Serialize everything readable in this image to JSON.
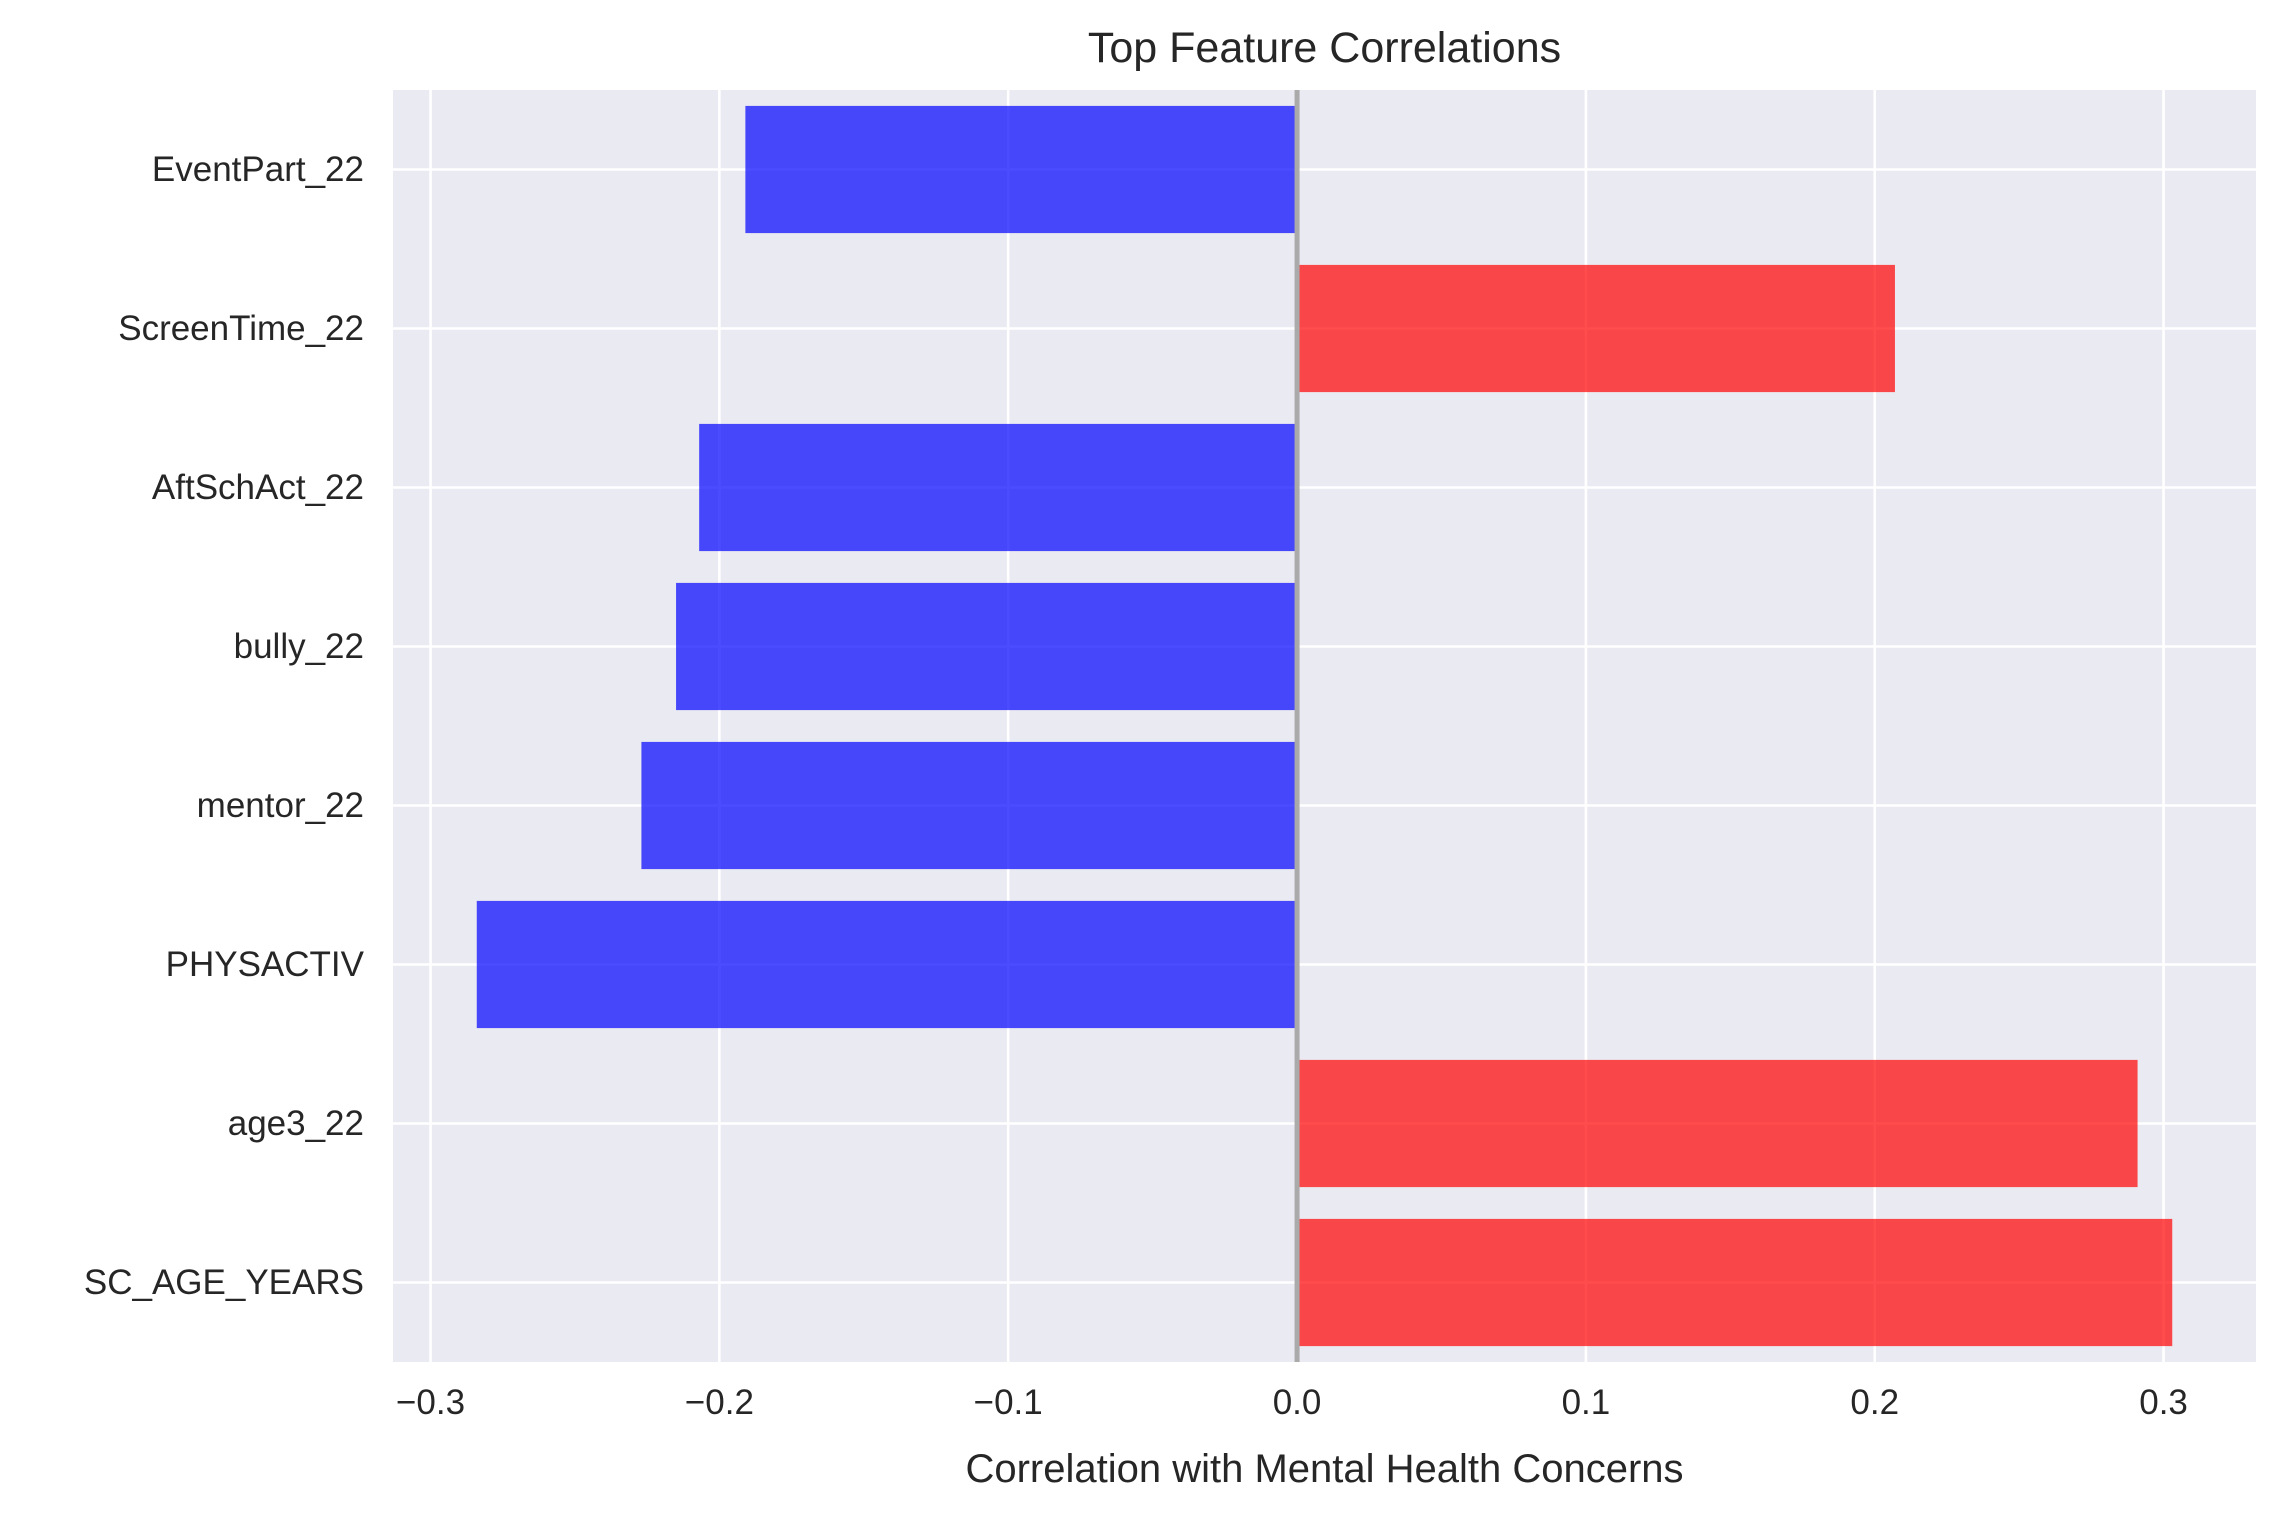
{
  "chart_data": {
    "type": "bar",
    "orientation": "horizontal",
    "title": "Top Feature Correlations",
    "xlabel": "Correlation with Mental Health Concerns",
    "ylabel": "",
    "categories": [
      "EventPart_22",
      "ScreenTime_22",
      "AftSchAct_22",
      "bully_22",
      "mentor_22",
      "PHYSACTIV",
      "age3_22",
      "SC_AGE_YEARS"
    ],
    "values": [
      -0.191,
      0.207,
      -0.207,
      -0.215,
      -0.227,
      -0.284,
      0.291,
      0.303
    ],
    "xlim": [
      -0.313,
      0.332
    ],
    "xticks": [
      -0.3,
      -0.2,
      -0.1,
      0.0,
      0.1,
      0.2,
      0.3
    ],
    "xtick_labels": [
      "−0.3",
      "−0.2",
      "−0.1",
      "0.0",
      "0.1",
      "0.2",
      "0.3"
    ],
    "grid": true,
    "zero_line": true,
    "colors": {
      "positive": "#ff0000",
      "negative": "#0000ff",
      "bar_opacity": 0.7,
      "plot_background": "#eaeaf2",
      "grid": "#ffffff",
      "zero_line": "#aaaaaa"
    }
  }
}
